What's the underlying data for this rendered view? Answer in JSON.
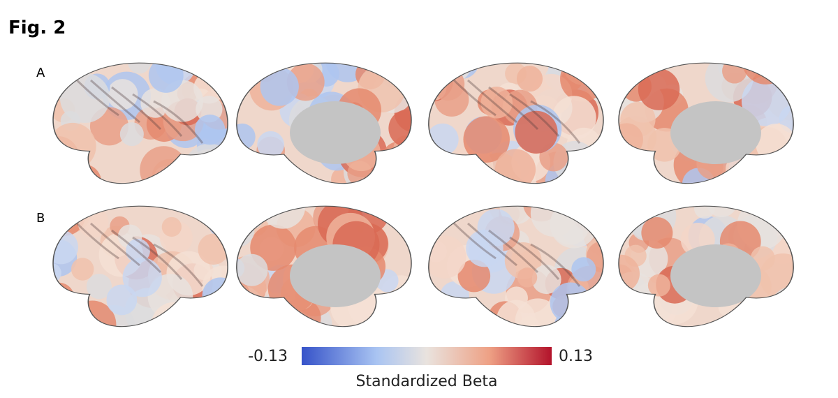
{
  "figure": {
    "label": "Fig. 2",
    "rows": [
      {
        "label": "A"
      },
      {
        "label": "B"
      }
    ],
    "colorbar": {
      "min": -0.13,
      "max": 0.13,
      "title": "Standardized Beta"
    }
  }
}
